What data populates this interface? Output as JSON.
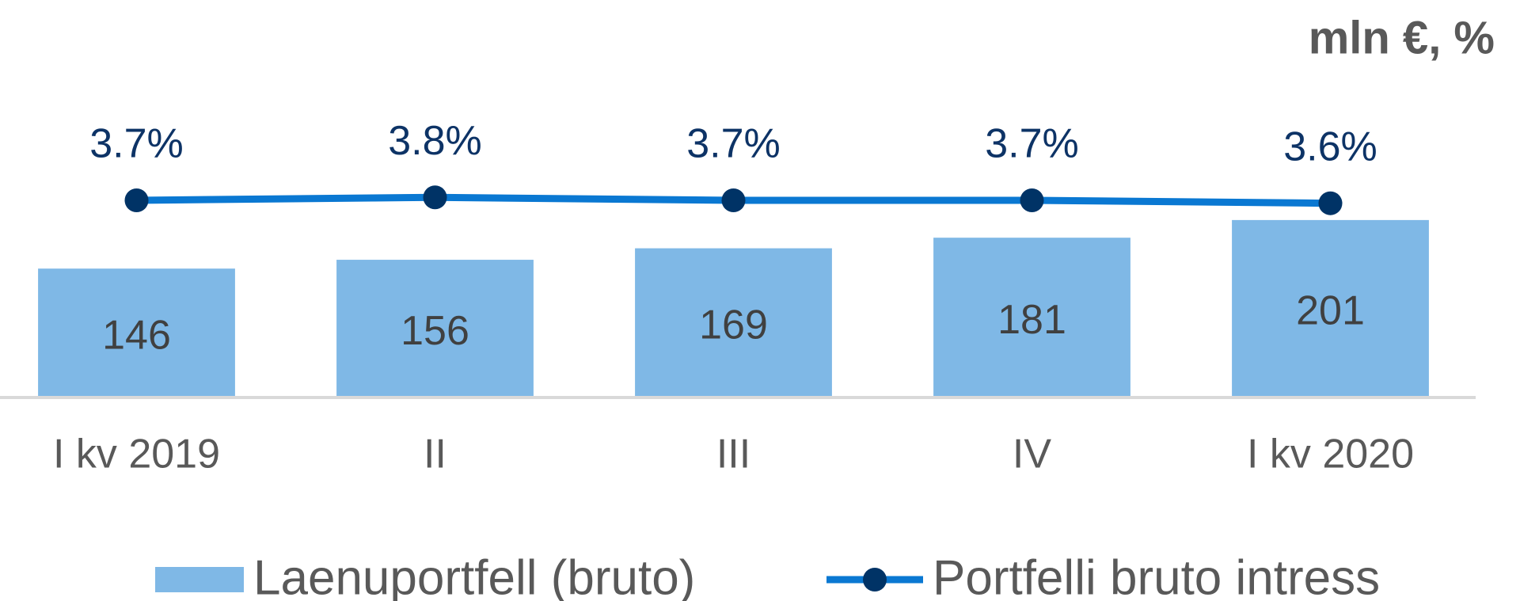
{
  "chart_data": {
    "type": "bar",
    "unit_label": "mln €, %",
    "categories": [
      "I kv 2019",
      "II",
      "III",
      "IV",
      "I kv 2020"
    ],
    "ylim": [
      0,
      400
    ],
    "y2lim": [
      -3,
      9
    ],
    "series": [
      {
        "name": "Laenuportfell (bruto)",
        "type": "bar",
        "color": "#7fb8e6",
        "values": [
          146,
          156,
          169,
          181,
          201
        ]
      },
      {
        "name": "Portfelli bruto intress",
        "type": "line",
        "axis": "y2",
        "color": "#0a78d2",
        "marker_color": "#003366",
        "values": [
          3.7,
          3.8,
          3.7,
          3.7,
          3.6
        ],
        "value_labels": [
          "3.7%",
          "3.8%",
          "3.7%",
          "3.7%",
          "3.6%"
        ]
      }
    ]
  }
}
